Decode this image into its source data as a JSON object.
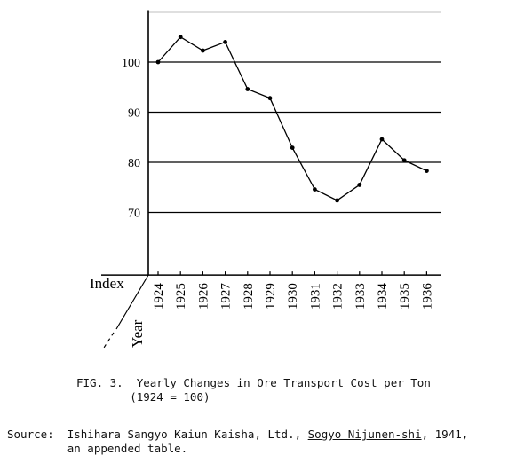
{
  "chart_data": {
    "type": "line",
    "index_label": "Index",
    "year_label": "Year",
    "categories": [
      "1924",
      "1925",
      "1926",
      "1927",
      "1928",
      "1929",
      "1930",
      "1931",
      "1932",
      "1933",
      "1934",
      "1935",
      "1936"
    ],
    "series": [
      {
        "values": [
          100,
          105,
          102.3,
          104,
          94.6,
          92.8,
          82.9,
          74.6,
          72.4,
          75.5,
          84.6,
          80.4,
          78.3
        ]
      }
    ],
    "yticks": [
      70,
      80,
      90,
      100
    ],
    "ylim": [
      57.5,
      110
    ],
    "grid": true
  },
  "caption": {
    "line1": "FIG. 3.  Yearly Changes in Ore Transport Cost per Ton",
    "line2": "        (1924 = 100)"
  },
  "source": {
    "prefix": "Source:  Ishihara Sangyo Kaiun Kaisha, Ltd., ",
    "work": "Sogyo Nijunen-shi",
    "suffix": ", 1941,",
    "line2": "         an appended table."
  }
}
